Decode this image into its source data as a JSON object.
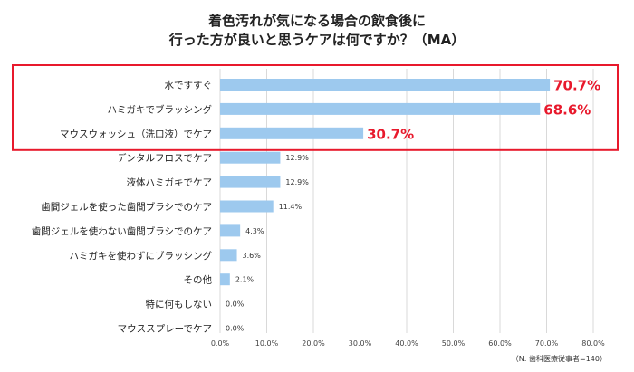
{
  "chart_data": {
    "type": "bar",
    "orientation": "horizontal",
    "title_line1": "着色汚れが気になる場合の飲食後に",
    "title_line2": "行った方が良いと思うケアは何ですか？（MA）",
    "categories": [
      "水ですすぐ",
      "ハミガキでブラッシング",
      "マウスウォッシュ（洗口液）でケア",
      "デンタルフロスでケア",
      "液体ハミガキでケア",
      "歯間ジェルを使った歯間ブラシでのケア",
      "歯間ジェルを使わない歯間ブラシでのケア",
      "ハミガキを使わずにブラッシング",
      "その他",
      "特に何もしない",
      "マウススプレーでケア"
    ],
    "values": [
      70.7,
      68.6,
      30.7,
      12.9,
      12.9,
      11.4,
      4.3,
      3.6,
      2.1,
      0.0,
      0.0
    ],
    "value_labels": [
      "70.7%",
      "68.6%",
      "30.7%",
      "12.9%",
      "12.9%",
      "11.4%",
      "4.3%",
      "3.6%",
      "2.1%",
      "0.0%",
      "0.0%"
    ],
    "highlight_top": 3,
    "x_ticks": [
      "0.0%",
      "10.0%",
      "20.0%",
      "30.0%",
      "40.0%",
      "50.0%",
      "60.0%",
      "70.0%",
      "80.0%"
    ],
    "xlim": [
      0,
      80
    ],
    "grid": true,
    "note": "（N: 歯科医療従事者=140）",
    "colors": {
      "bar": "#9dc9ee",
      "highlight_text": "#e8192c",
      "box": "#e8192c",
      "grid": "#d9d9d9"
    }
  }
}
